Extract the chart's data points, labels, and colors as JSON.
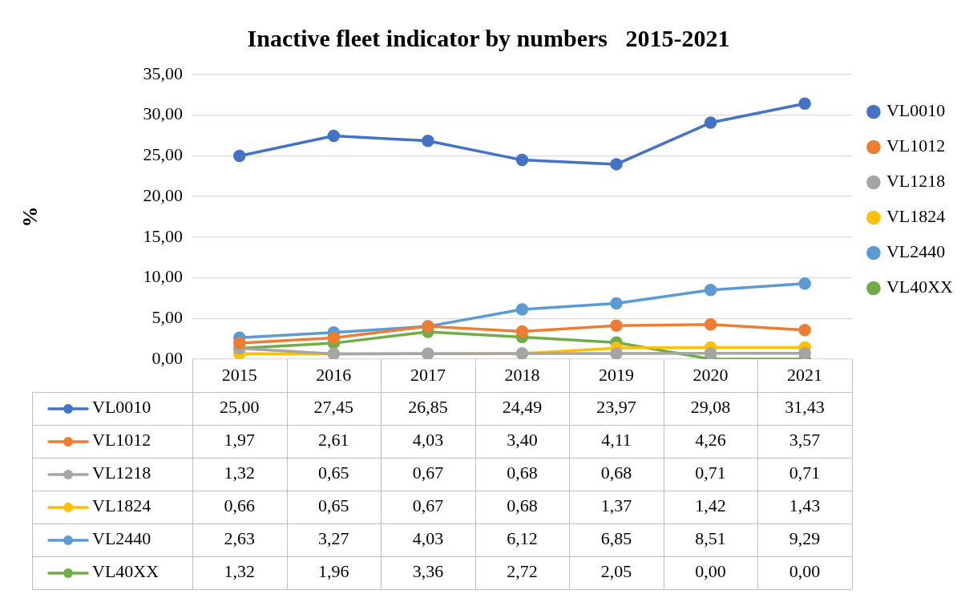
{
  "chart_data": {
    "type": "line",
    "title": "Inactive fleet indicator by numbers   2015-2021",
    "ylabel": "%",
    "categories": [
      "2015",
      "2016",
      "2017",
      "2018",
      "2019",
      "2020",
      "2021"
    ],
    "series": [
      {
        "name": "VL0010",
        "color": "#4472c4",
        "values": [
          25.0,
          27.45,
          26.85,
          24.49,
          23.97,
          29.08,
          31.43
        ],
        "value_labels": [
          "25,00",
          "27,45",
          "26,85",
          "24,49",
          "23,97",
          "29,08",
          "31,43"
        ]
      },
      {
        "name": "VL1012",
        "color": "#ed7d31",
        "values": [
          1.97,
          2.61,
          4.03,
          3.4,
          4.11,
          4.26,
          3.57
        ],
        "value_labels": [
          "1,97",
          "2,61",
          "4,03",
          "3,40",
          "4,11",
          "4,26",
          "3,57"
        ]
      },
      {
        "name": "VL1218",
        "color": "#a5a5a5",
        "values": [
          1.32,
          0.65,
          0.67,
          0.68,
          0.68,
          0.71,
          0.71
        ],
        "value_labels": [
          "1,32",
          "0,65",
          "0,67",
          "0,68",
          "0,68",
          "0,71",
          "0,71"
        ]
      },
      {
        "name": "VL1824",
        "color": "#ffc000",
        "values": [
          0.66,
          0.65,
          0.67,
          0.68,
          1.37,
          1.42,
          1.43
        ],
        "value_labels": [
          "0,66",
          "0,65",
          "0,67",
          "0,68",
          "1,37",
          "1,42",
          "1,43"
        ]
      },
      {
        "name": "VL2440",
        "color": "#5b9bd5",
        "values": [
          2.63,
          3.27,
          4.03,
          6.12,
          6.85,
          8.51,
          9.29
        ],
        "value_labels": [
          "2,63",
          "3,27",
          "4,03",
          "6,12",
          "6,85",
          "8,51",
          "9,29"
        ]
      },
      {
        "name": "VL40XX",
        "color": "#70ad47",
        "values": [
          1.32,
          1.96,
          3.36,
          2.72,
          2.05,
          0.0,
          0.0
        ],
        "value_labels": [
          "1,32",
          "1,96",
          "3,36",
          "2,72",
          "2,05",
          "0,00",
          "0,00"
        ]
      }
    ],
    "ylim": [
      0,
      35
    ],
    "yticks": [
      {
        "value": 0,
        "label": "0,00"
      },
      {
        "value": 5,
        "label": "5,00"
      },
      {
        "value": 10,
        "label": "10,00"
      },
      {
        "value": 15,
        "label": "15,00"
      },
      {
        "value": 20,
        "label": "20,00"
      },
      {
        "value": 25,
        "label": "25,00"
      },
      {
        "value": 30,
        "label": "30,00"
      },
      {
        "value": 35,
        "label": "35,00"
      }
    ],
    "grid": "y",
    "legend": "right",
    "marker": "circle",
    "line_style": "solid"
  }
}
